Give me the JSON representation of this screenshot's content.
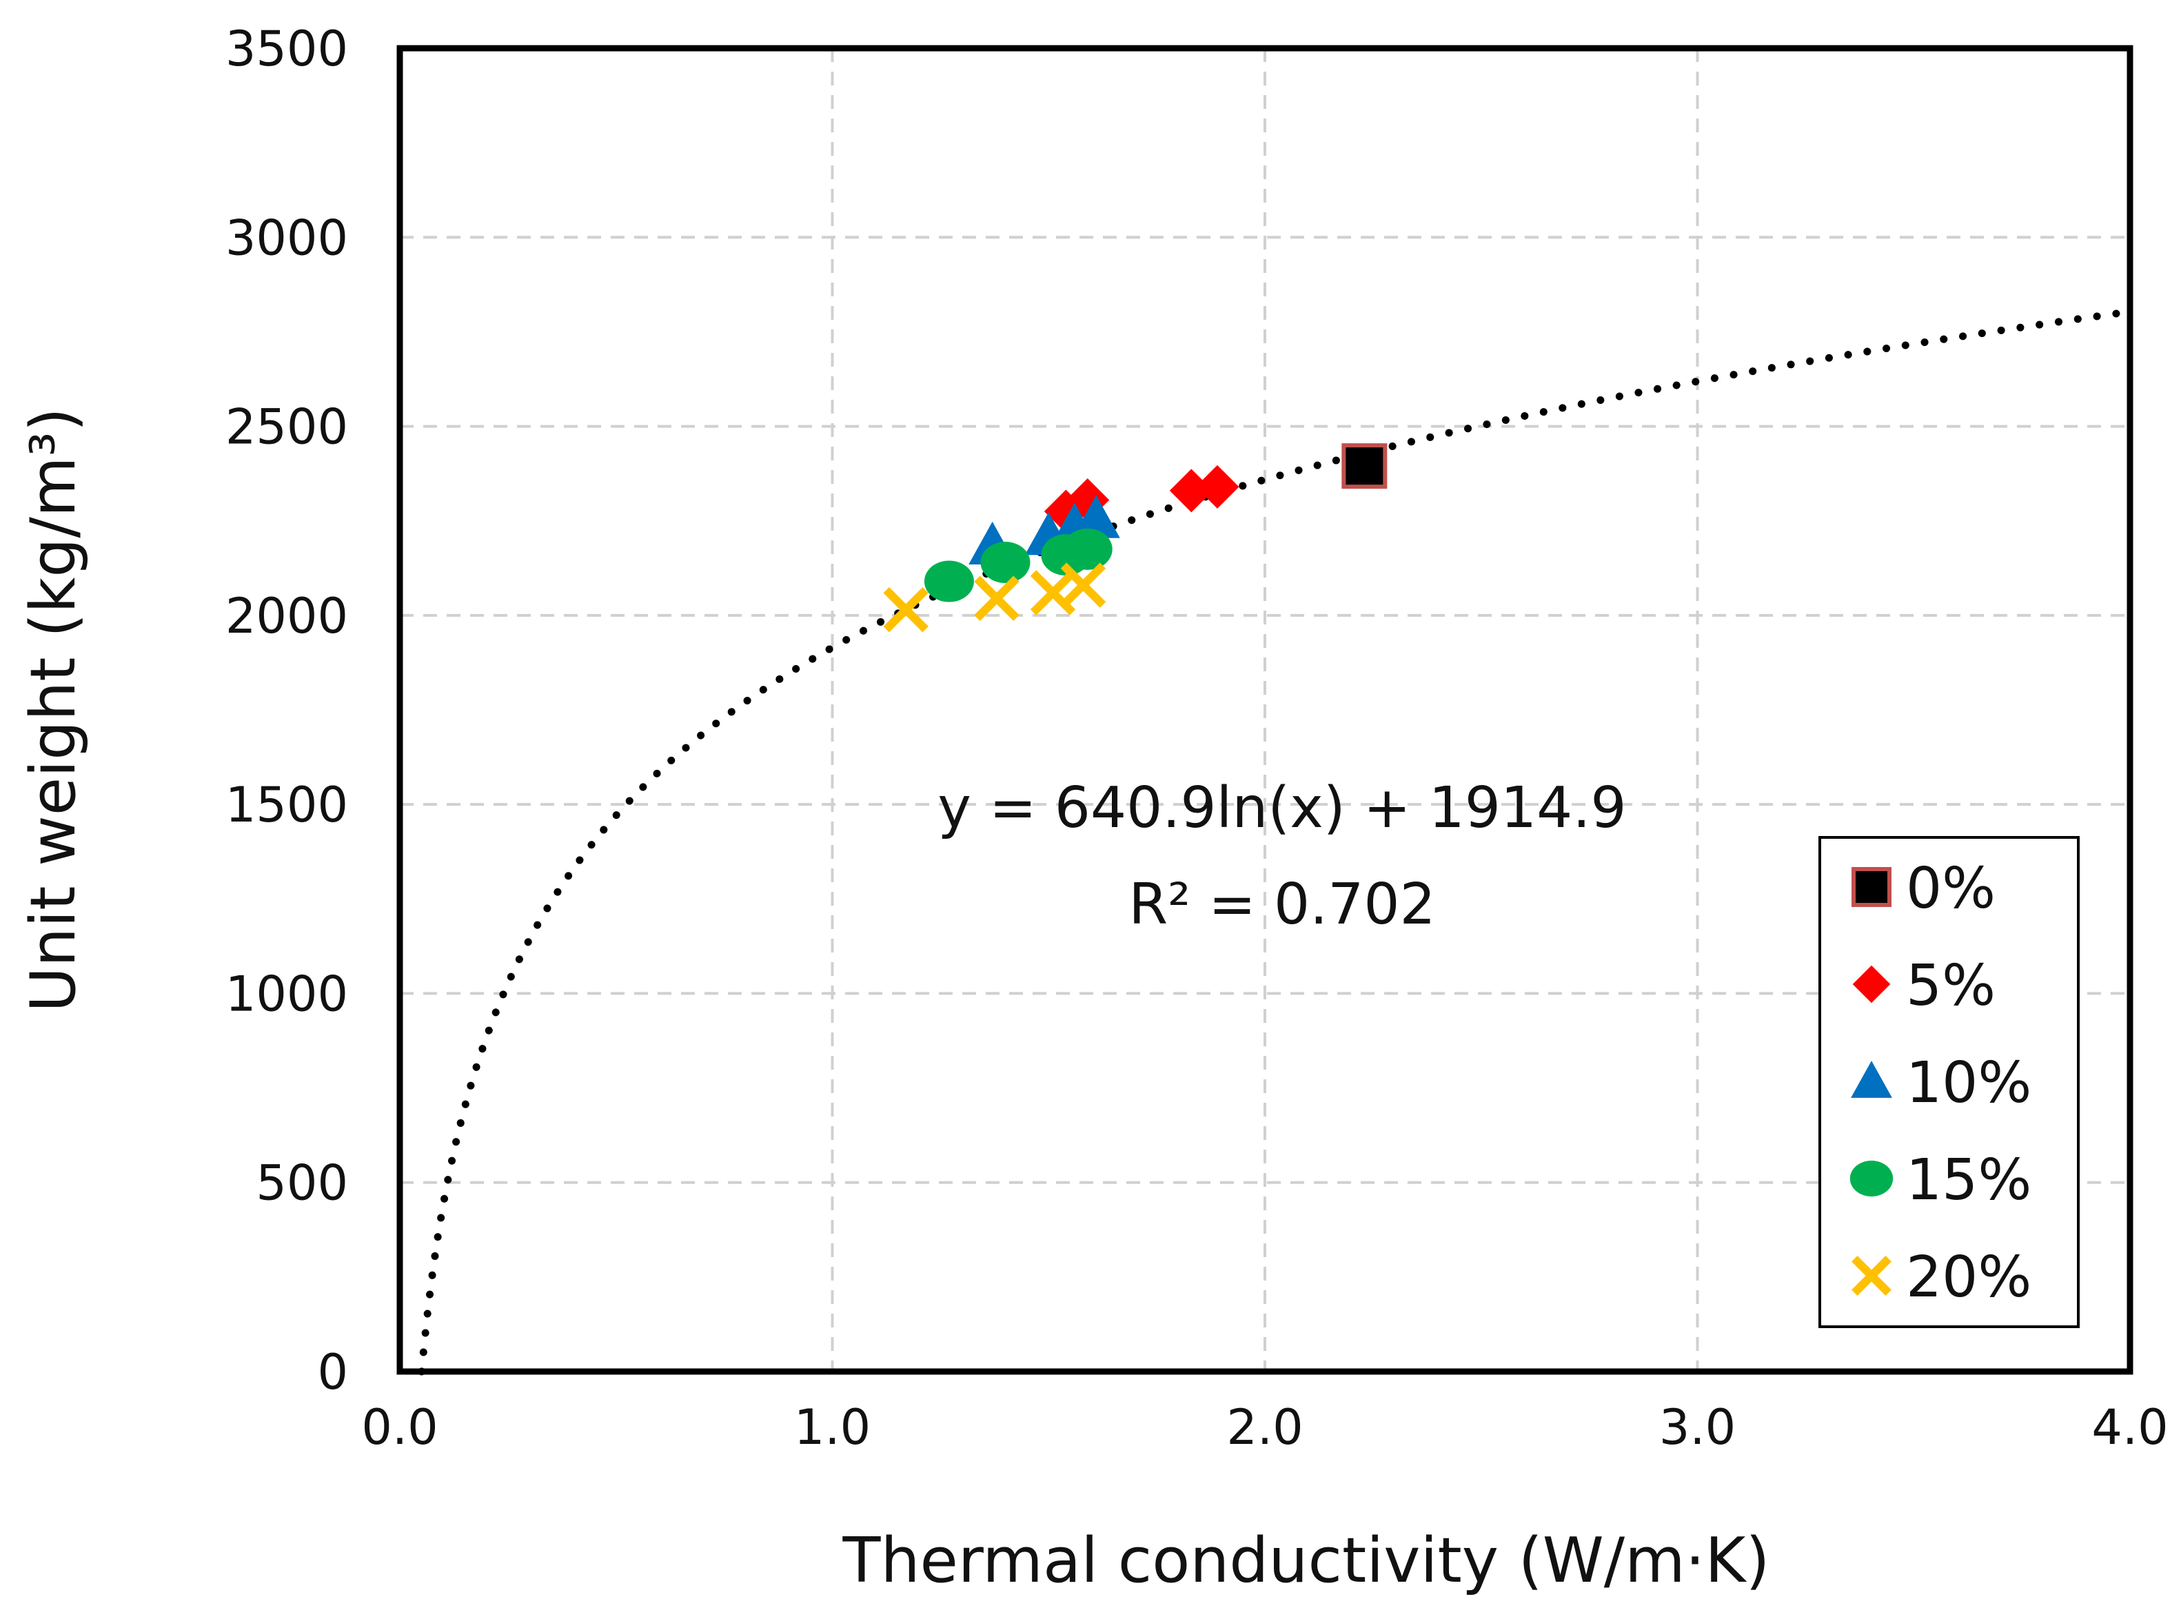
{
  "chart_data": {
    "type": "scatter",
    "xlabel": "Thermal conductivity (W/m·K)",
    "ylabel": "Unit weight (kg/m³)",
    "xlim": [
      0.0,
      4.0
    ],
    "ylim": [
      0,
      3500
    ],
    "x_ticks": [
      "0.0",
      "1.0",
      "2.0",
      "3.0",
      "4.0"
    ],
    "y_ticks": [
      "0",
      "500",
      "1000",
      "1500",
      "2000",
      "2500",
      "3000",
      "3500"
    ],
    "grid": true,
    "legend_position": "bottom-right",
    "series": [
      {
        "name": "0%",
        "marker": "square",
        "color": "#000000",
        "edge": "#c0504d",
        "points": [
          [
            2.23,
            2395
          ]
        ]
      },
      {
        "name": "5%",
        "marker": "diamond",
        "color": "#ff0000",
        "points": [
          [
            1.54,
            2275
          ],
          [
            1.59,
            2305
          ],
          [
            1.83,
            2330
          ],
          [
            1.89,
            2340
          ]
        ]
      },
      {
        "name": "10%",
        "marker": "triangle",
        "color": "#0070c0",
        "points": [
          [
            1.37,
            2185
          ],
          [
            1.5,
            2210
          ],
          [
            1.56,
            2235
          ],
          [
            1.61,
            2255
          ]
        ]
      },
      {
        "name": "15%",
        "marker": "circle",
        "color": "#00b050",
        "points": [
          [
            1.27,
            2090
          ],
          [
            1.4,
            2140
          ],
          [
            1.54,
            2160
          ],
          [
            1.59,
            2175
          ]
        ]
      },
      {
        "name": "20%",
        "marker": "x",
        "color": "#ffc000",
        "points": [
          [
            1.17,
            2015
          ],
          [
            1.38,
            2045
          ],
          [
            1.51,
            2060
          ],
          [
            1.58,
            2080
          ]
        ]
      }
    ],
    "trendline": {
      "type": "logarithmic",
      "a": 640.9,
      "b": 1914.9,
      "x_start": 0.05,
      "x_end": 4.0,
      "color": "#000000",
      "style": "dotted"
    },
    "annotations": [
      "y = 640.9ln(x) + 1914.9",
      "R² = 0.702"
    ]
  }
}
